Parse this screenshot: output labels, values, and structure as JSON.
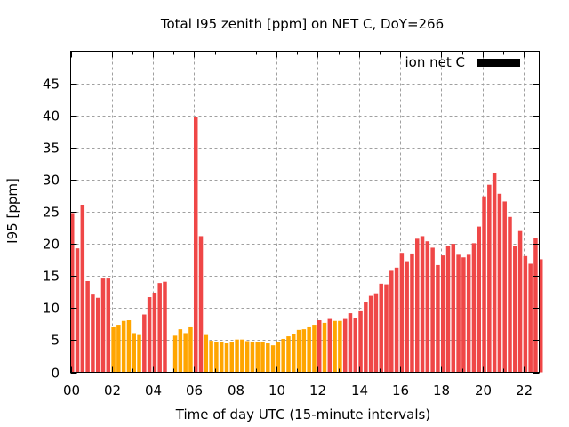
{
  "chart_data": {
    "type": "bar",
    "title": "Total I95 zenith [ppm] on NET C, DoY=266",
    "xlabel": "Time of day UTC (15-minute intervals)",
    "ylabel": "I95 [ppm]",
    "xlim": [
      0,
      22.75
    ],
    "ylim": [
      0,
      50
    ],
    "grid": true,
    "x_ticks": [
      "00",
      "02",
      "04",
      "06",
      "08",
      "10",
      "12",
      "14",
      "16",
      "18",
      "20",
      "22"
    ],
    "x_tick_values": [
      0,
      2,
      4,
      6,
      8,
      10,
      12,
      14,
      16,
      18,
      20,
      22
    ],
    "y_ticks": [
      "0",
      "5",
      "10",
      "15",
      "20",
      "25",
      "30",
      "35",
      "40",
      "45"
    ],
    "y_tick_values": [
      0,
      5,
      10,
      15,
      20,
      25,
      30,
      35,
      40,
      45
    ],
    "legend": {
      "label": "ion net C",
      "position": "top-right",
      "color": "#000000"
    },
    "bar_interval_hours": 0.25,
    "colors": {
      "high": "#ef4747",
      "low": "#ffa500"
    },
    "series": [
      {
        "name": "ion net C",
        "values": [
          24.8,
          19.3,
          26.1,
          14.2,
          12.1,
          11.6,
          14.6,
          14.6,
          7.0,
          7.4,
          8.0,
          8.1,
          6.1,
          5.8,
          9.0,
          11.7,
          12.4,
          13.9,
          14.1,
          null,
          5.7,
          6.7,
          6.1,
          7.0,
          39.8,
          21.2,
          5.8,
          4.9,
          4.7,
          4.7,
          4.5,
          4.7,
          5.1,
          5.1,
          4.85,
          4.7,
          4.7,
          4.7,
          4.5,
          4.2,
          4.7,
          5.2,
          5.6,
          6.0,
          6.6,
          6.7,
          7.0,
          7.4,
          8.1,
          7.7,
          8.3,
          8.0,
          8.0,
          8.3,
          9.2,
          8.4,
          9.5,
          11.0,
          11.9,
          12.3,
          13.8,
          13.7,
          15.8,
          16.3,
          18.6,
          17.3,
          18.5,
          20.8,
          21.2,
          20.4,
          19.4,
          16.7,
          18.2,
          19.7,
          20.0,
          18.3,
          17.9,
          18.3,
          20.1,
          22.7,
          27.4,
          29.2,
          31.0,
          27.8,
          26.6,
          24.2,
          19.6,
          22.0,
          18.1,
          16.9,
          20.9,
          17.6
        ],
        "color_class": [
          "high",
          "high",
          "high",
          "high",
          "high",
          "high",
          "high",
          "high",
          "low",
          "low",
          "low",
          "low",
          "low",
          "low",
          "high",
          "high",
          "high",
          "high",
          "high",
          null,
          "low",
          "low",
          "low",
          "low",
          "high",
          "high",
          "low",
          "low",
          "low",
          "low",
          "low",
          "low",
          "low",
          "low",
          "low",
          "low",
          "low",
          "low",
          "low",
          "low",
          "low",
          "low",
          "low",
          "low",
          "low",
          "low",
          "low",
          "low",
          "high",
          "low",
          "high",
          "low",
          "low",
          "high",
          "high",
          "high",
          "high",
          "high",
          "high",
          "high",
          "high",
          "high",
          "high",
          "high",
          "high",
          "high",
          "high",
          "high",
          "high",
          "high",
          "high",
          "high",
          "high",
          "high",
          "high",
          "high",
          "high",
          "high",
          "high",
          "high",
          "high",
          "high",
          "high",
          "high",
          "high",
          "high",
          "high",
          "high",
          "high",
          "high",
          "high",
          "high"
        ]
      }
    ]
  }
}
